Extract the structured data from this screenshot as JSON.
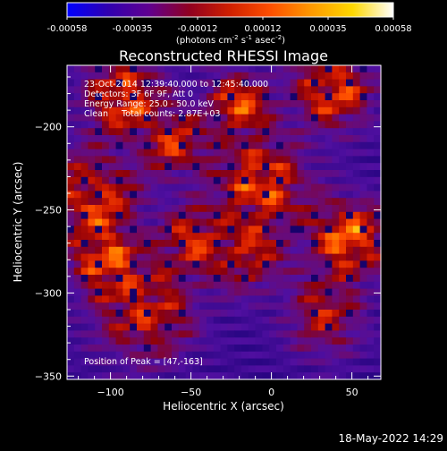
{
  "chart_data": {
    "type": "heatmap",
    "title": "Reconstructed RHESSI Image",
    "xlabel": "Heliocentric X (arcsec)",
    "ylabel": "Heliocentric Y (arcsec)",
    "xlim": [
      -127,
      68
    ],
    "ylim": [
      -352,
      -163
    ],
    "x_ticks": [
      -100,
      -50,
      0,
      50
    ],
    "y_ticks": [
      -350,
      -300,
      -250,
      -200
    ],
    "colorbar": {
      "range": [
        -0.00058,
        0.00058
      ],
      "ticks": [
        "-0.00058",
        "-0.00035",
        "-0.00012",
        "0.00012",
        "0.00035",
        "0.00058"
      ],
      "unit_parts": [
        "(photons cm",
        "-2",
        " s",
        "-1",
        " asec",
        "-2",
        ")"
      ],
      "colors": [
        "#0000ff",
        "#3000b0",
        "#600090",
        "#900020",
        "#d02000",
        "#ff5000",
        "#ff9a00",
        "#ffd800",
        "#ffffff"
      ]
    },
    "annotations": [
      "23-Oct-2014 12:39:40.000 to 12:45:40.000",
      "Detectors: 3F 6F 9F, Att 0",
      "Energy Range: 25.0 - 50.0 keV",
      "Clean     Total counts: 2.87E+03"
    ],
    "peak_label": "Position of Peak = [47,-163]",
    "peak": [
      47,
      -163
    ],
    "grid": false
  },
  "footer": {
    "date": "18-May-2022 14:29"
  }
}
